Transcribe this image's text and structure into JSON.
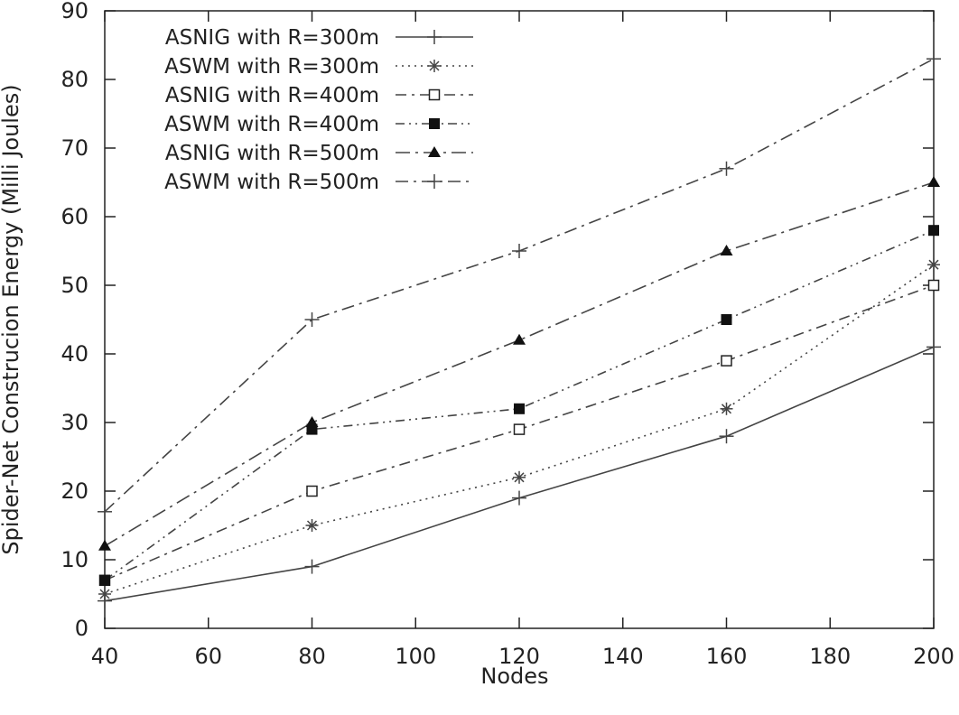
{
  "chart_data": {
    "type": "line",
    "title": "",
    "xlabel": "Nodes",
    "ylabel": "Spider-Net Construcion Energy (Milli Joules)",
    "xlim": [
      40,
      200
    ],
    "ylim": [
      0,
      90
    ],
    "x_ticks": [
      "40",
      "60",
      "80",
      "100",
      "120",
      "140",
      "160",
      "180",
      "200"
    ],
    "y_ticks": [
      "0",
      "10",
      "20",
      "30",
      "40",
      "50",
      "60",
      "70",
      "80",
      "90"
    ],
    "grid": false,
    "legend_position": "top-left",
    "x": [
      40,
      80,
      120,
      160,
      200
    ],
    "series": [
      {
        "name": "ASNIG with R=300m",
        "marker": "plus",
        "dash": "solid",
        "values": [
          4,
          9,
          19,
          28,
          41
        ]
      },
      {
        "name": "ASWM with R=300m",
        "marker": "star",
        "dash": "dotted",
        "values": [
          5,
          15,
          22,
          32,
          53
        ]
      },
      {
        "name": "ASNIG with R=400m",
        "marker": "open-square",
        "dash": "dash",
        "values": [
          7,
          20,
          29,
          39,
          50
        ]
      },
      {
        "name": "ASWM with R=400m",
        "marker": "filled-square",
        "dash": "dash-dot-dot",
        "values": [
          7,
          29,
          32,
          45,
          58
        ]
      },
      {
        "name": "ASNIG with R=500m",
        "marker": "filled-triangle",
        "dash": "long-dash",
        "values": [
          12,
          30,
          42,
          55,
          65
        ]
      },
      {
        "name": "ASWM with R=500m",
        "marker": "plus",
        "dash": "dash-dot",
        "values": [
          17,
          45,
          55,
          67,
          83
        ]
      }
    ]
  }
}
